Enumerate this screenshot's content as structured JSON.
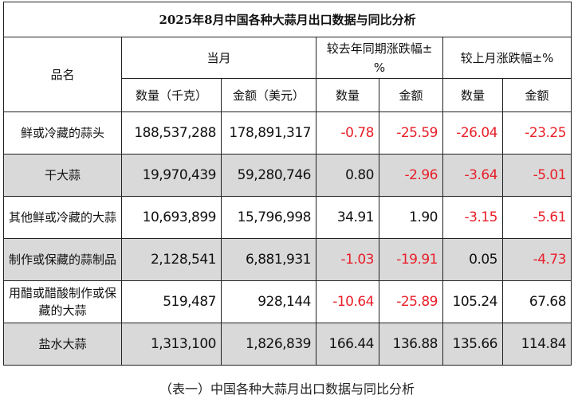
{
  "title": "2025年8月中国各种大蒜月出口数据与同比分析",
  "headers": {
    "name": "品名",
    "current_month": "当月",
    "yoy": "较去年同期涨跌幅±%",
    "mom": "较上月涨跌幅±%",
    "qty_kg": "数量（千克）",
    "amount_usd": "金额（美元）",
    "qty": "数量",
    "amount": "金额"
  },
  "rows": [
    {
      "name": "鲜或冷藏的蒜头",
      "qty": "188,537,288",
      "amount": "178,891,317",
      "yoy_qty": "-0.78",
      "yoy_amount": "-25.59",
      "mom_qty": "-26.04",
      "mom_amount": "-23.25"
    },
    {
      "name": "干大蒜",
      "qty": "19,970,439",
      "amount": "59,280,746",
      "yoy_qty": "0.80",
      "yoy_amount": "-2.96",
      "mom_qty": "-3.64",
      "mom_amount": "-5.01"
    },
    {
      "name": "其他鲜或冷藏的大蒜",
      "qty": "10,693,899",
      "amount": "15,796,998",
      "yoy_qty": "34.91",
      "yoy_amount": "1.90",
      "mom_qty": "-3.15",
      "mom_amount": "-5.61"
    },
    {
      "name": "制作或保藏的蒜制品",
      "qty": "2,128,541",
      "amount": "6,881,931",
      "yoy_qty": "-1.03",
      "yoy_amount": "-19.91",
      "mom_qty": "0.05",
      "mom_amount": "-4.73"
    },
    {
      "name": "用醋或醋酸制作或保藏的大蒜",
      "qty": "519,487",
      "amount": "928,144",
      "yoy_qty": "-10.64",
      "yoy_amount": "-25.89",
      "mom_qty": "105.24",
      "mom_amount": "67.68"
    },
    {
      "name": "盐水大蒜",
      "qty": "1,313,100",
      "amount": "1,826,839",
      "yoy_qty": "166.44",
      "yoy_amount": "136.88",
      "mom_qty": "135.66",
      "mom_amount": "114.84"
    }
  ],
  "colors": {
    "negative": "#e8202a",
    "shaded_row": "#d9d9d9"
  },
  "caption": "（表一）中国各种大蒜月出口数据与同比分析"
}
